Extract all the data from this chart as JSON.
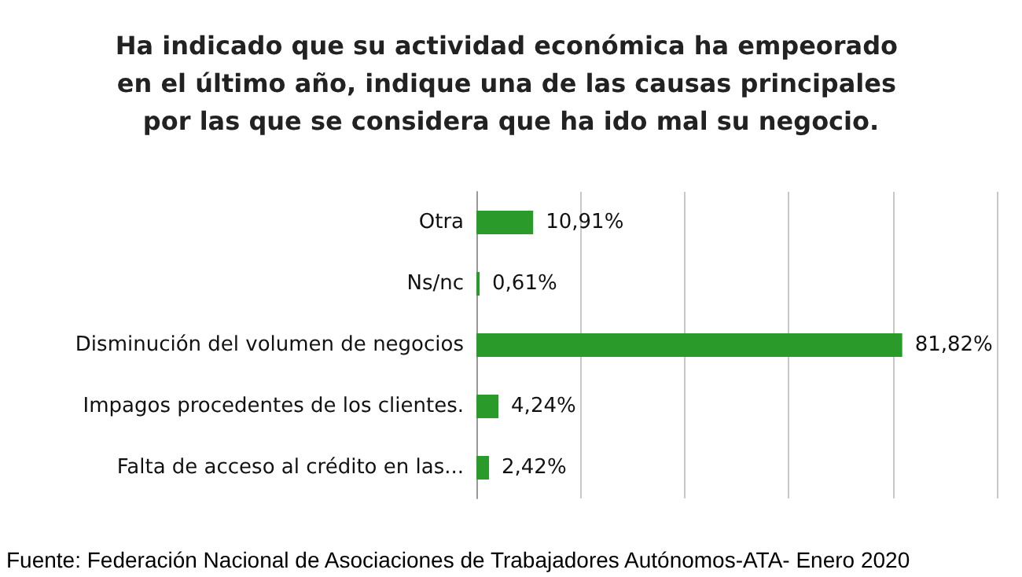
{
  "chart_data": {
    "type": "bar",
    "orientation": "horizontal",
    "title": "Ha indicado que su actividad económica ha empeorado en el último año, indique una de las causas principales por las que se considera que ha ido mal su negocio.",
    "categories": [
      "Otra",
      "Ns/nc",
      "Disminución del volumen de negocios",
      "Impagos procedentes de los clientes.",
      "Falta de acceso al crédito en las..."
    ],
    "values": [
      10.91,
      0.61,
      81.82,
      4.24,
      2.42
    ],
    "value_labels": [
      "10,91%",
      "0,61%",
      "81,82%",
      "4,24%",
      "2,42%"
    ],
    "color": "#2a9a2a",
    "xlim": [
      0,
      100
    ],
    "xticks": [
      {
        "value": 0,
        "label": null
      },
      {
        "value": 20,
        "label": null
      },
      {
        "value": 40,
        "label": null
      },
      {
        "value": 60,
        "label": null
      },
      {
        "value": 80,
        "label": null
      },
      {
        "value": 100,
        "label": null
      }
    ],
    "grid": "x",
    "tick_labels": "y",
    "annotations": [
      "Fuente: Federación Nacional de Asociaciones de Trabajadores Autónomos-ATA- Enero 2020"
    ]
  }
}
